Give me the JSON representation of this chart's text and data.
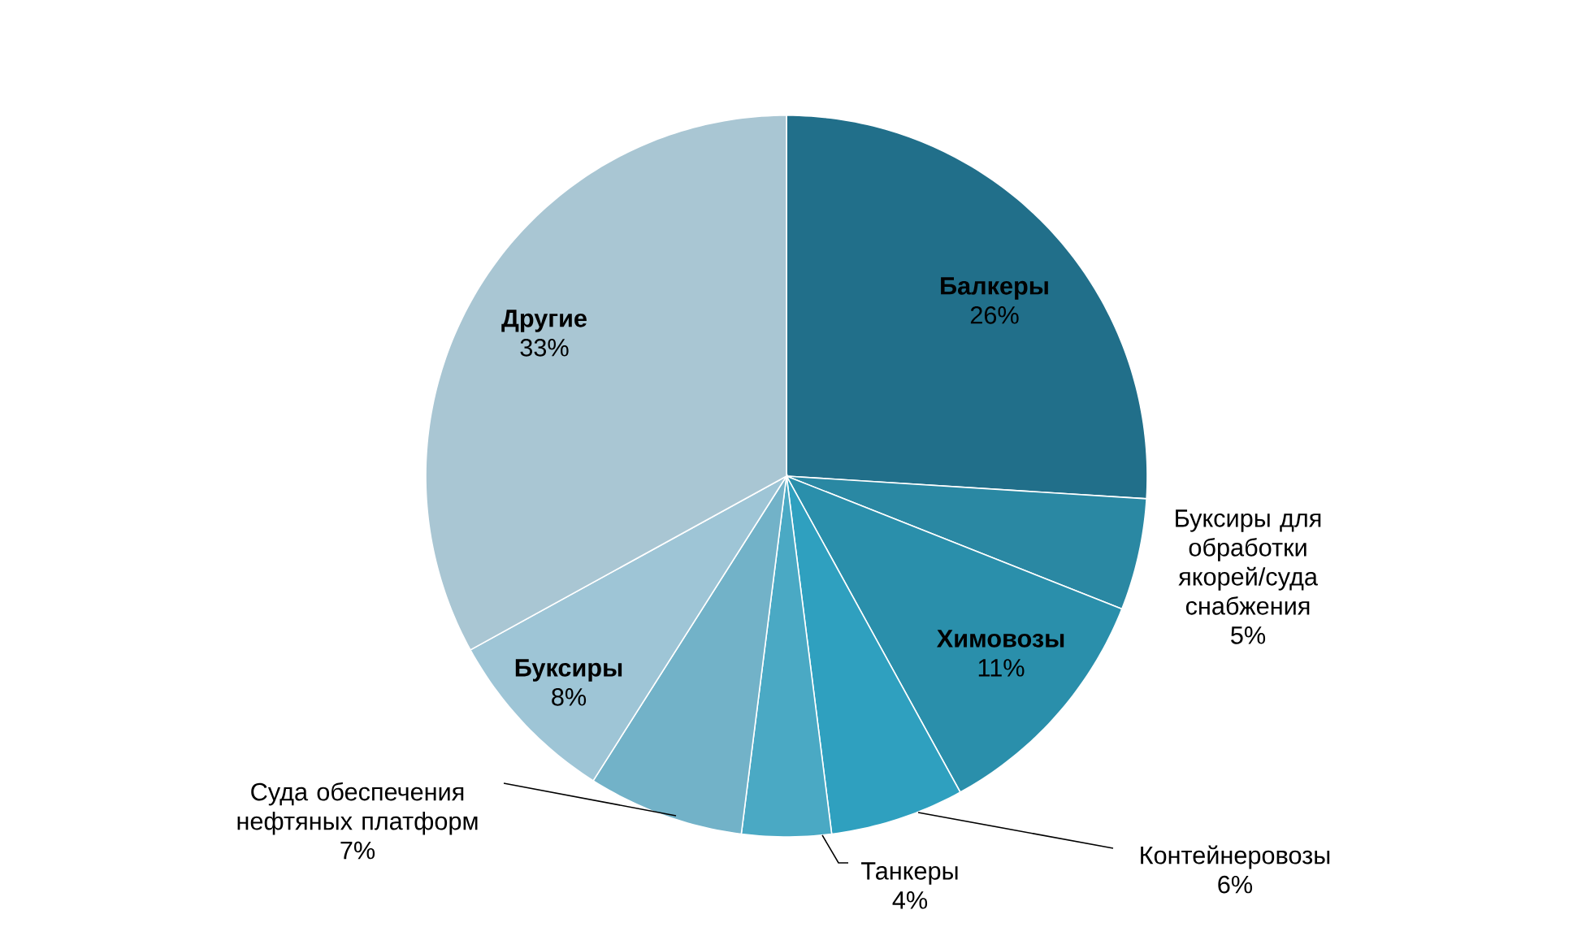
{
  "chart_data": {
    "type": "pie",
    "categories": [
      "Балкеры",
      "Буксиры для обработки якорей/суда снабжения",
      "Химовозы",
      "Контейнеровозы",
      "Танкеры",
      "Суда обеспечения нефтяных платформ",
      "Буксиры",
      "Другие"
    ],
    "values": [
      26,
      5,
      11,
      6,
      4,
      7,
      8,
      33
    ],
    "value_labels": [
      "26%",
      "5%",
      "11%",
      "6%",
      "4%",
      "7%",
      "8%",
      "33%"
    ],
    "colors": [
      "#216f8a",
      "#2a88a3",
      "#2a8fab",
      "#2fa0bf",
      "#4aa9c4",
      "#72b2c8",
      "#9ec5d6",
      "#a9c6d3"
    ]
  }
}
